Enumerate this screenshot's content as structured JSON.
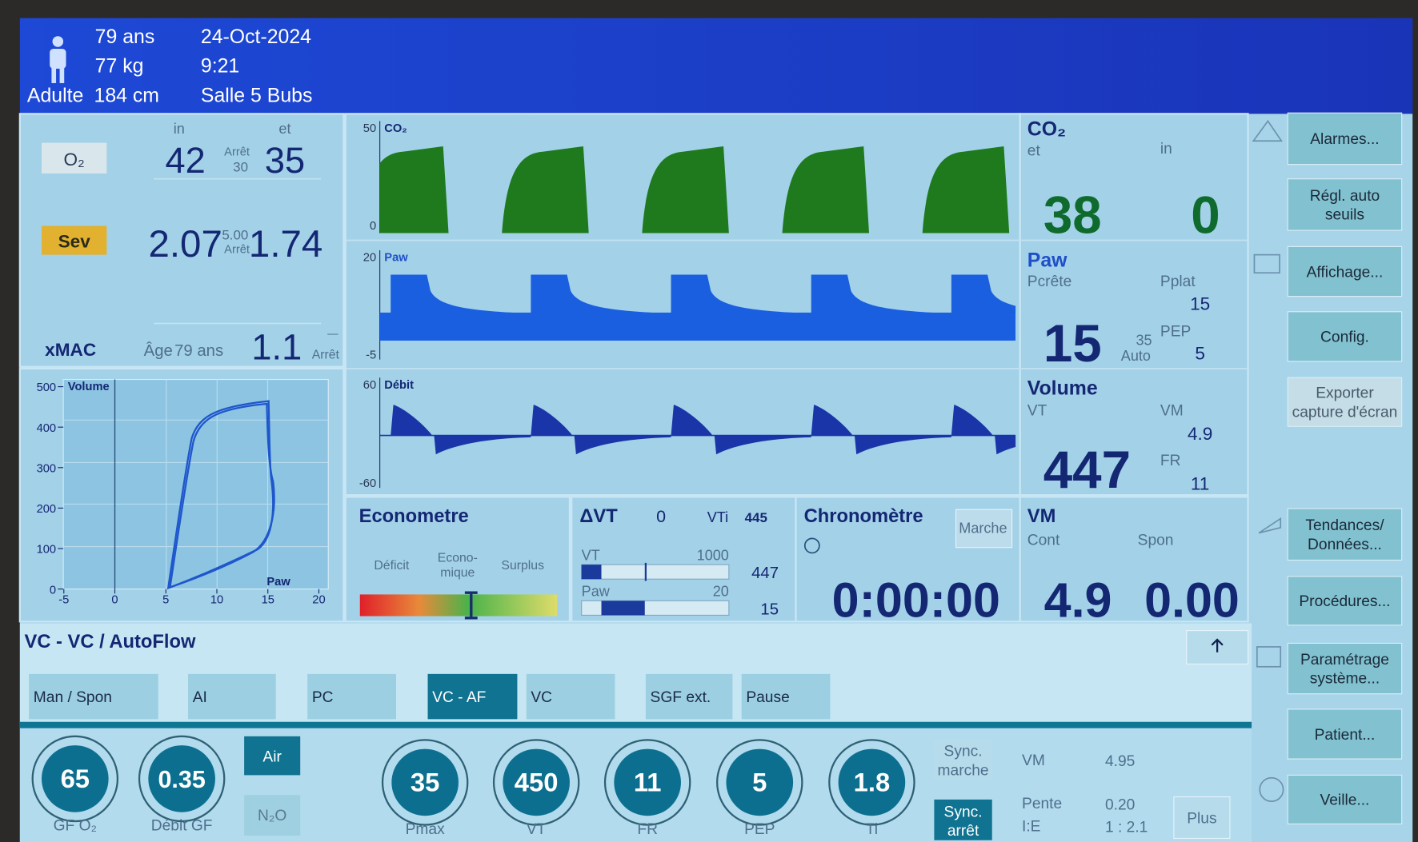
{
  "header": {
    "age": "79 ans",
    "weight": "77 kg",
    "patient_type": "Adulte",
    "height": "184 cm",
    "date": "24-Oct-2024",
    "time": "9:21",
    "room": "Salle 5 Bubs"
  },
  "gases": {
    "in_label": "in",
    "et_label": "et",
    "o2": {
      "label": "O₂",
      "in": "42",
      "alarm_label": "Arrêt",
      "alarm_value": "30",
      "et": "35"
    },
    "sev": {
      "label": "Sev",
      "in": "2.07",
      "alarm_value": "5.00",
      "alarm_label": "Arrêt",
      "et": "1.74"
    },
    "xmac": {
      "label": "xMAC",
      "age_label": "Âge",
      "age": "79 ans",
      "value": "1.1",
      "dash": "—",
      "alarm_label": "Arrêt"
    }
  },
  "loop": {
    "y_label": "Volume",
    "x_label": "Paw",
    "yticks": [
      500,
      400,
      300,
      200,
      100,
      0
    ],
    "xticks": [
      -5,
      0,
      5,
      10,
      15,
      20
    ]
  },
  "waveforms": [
    {
      "label": "CO₂",
      "top": "50",
      "bottom": "0"
    },
    {
      "label": "Paw",
      "top": "20",
      "bottom": "-5"
    },
    {
      "label": "Débit",
      "top": "60",
      "bottom": "-60"
    }
  ],
  "co2_panel": {
    "title": "CO₂",
    "et_label": "et",
    "in_label": "in",
    "et": "38",
    "in": "0"
  },
  "paw_panel": {
    "title": "Paw",
    "peak_label": "Pcrête",
    "plat_label": "Pplat",
    "plat": "15",
    "peak": "15",
    "limit": "35",
    "limit_label": "Auto",
    "pep_label": "PEP",
    "pep": "5"
  },
  "volume_panel": {
    "title": "Volume",
    "vt_label": "VT",
    "vm_label": "VM",
    "vm": "4.9",
    "fr_label": "FR",
    "fr": "11",
    "vt": "447"
  },
  "econometer": {
    "title": "Econometre",
    "deficit": "Déficit",
    "economic": [
      "Econo-",
      "mique"
    ],
    "surplus": "Surplus"
  },
  "dvt": {
    "title": "ΔVT",
    "value": "0",
    "vti_label": "VTi",
    "vti": "445",
    "bars": [
      {
        "label": "VT",
        "max": "1000",
        "value": "447"
      },
      {
        "label": "Paw",
        "max": "20",
        "value": "15"
      }
    ]
  },
  "chrono": {
    "title": "Chronomètre",
    "button": "Marche",
    "time": "0:00:00"
  },
  "vm_panel": {
    "title": "VM",
    "cont_label": "Cont",
    "spon_label": "Spon",
    "cont": "4.9",
    "spon": "0.00"
  },
  "mode": {
    "title": "VC - VC / AutoFlow",
    "tabs": [
      "Man / Spon",
      "AI",
      "PC",
      "VC - AF",
      "VC",
      "SGF ext.",
      "Pause"
    ],
    "active_tab": 3
  },
  "side_buttons": [
    [
      "Alarmes..."
    ],
    [
      "Régl. auto",
      "seuils"
    ],
    [
      "Affichage..."
    ],
    [
      "Config."
    ],
    [
      "Exporter",
      "capture d'écran"
    ],
    [
      "Tendances/",
      "Données..."
    ],
    [
      "Procédures..."
    ],
    [
      "Paramétrage",
      "système..."
    ],
    [
      "Patient..."
    ],
    [
      "Veille..."
    ]
  ],
  "knobs": [
    {
      "value": "65",
      "label": "GF O₂"
    },
    {
      "value": "0.35",
      "label": "Débit GF"
    },
    {
      "value": "35",
      "label": "Pmax"
    },
    {
      "value": "450",
      "label": "VT"
    },
    {
      "value": "11",
      "label": "FR"
    },
    {
      "value": "5",
      "label": "PEP"
    },
    {
      "value": "1.8",
      "label": "Ti"
    }
  ],
  "gas_buttons": [
    "Air",
    "N₂O"
  ],
  "sync_buttons": [
    [
      "Sync.",
      "marche"
    ],
    [
      "Sync.",
      "arrêt"
    ]
  ],
  "settings": {
    "vm_label": "VM",
    "vm": "4.95",
    "pente_label": "Pente",
    "pente": "0.20",
    "ie_label": "I:E",
    "ie": "1 : 2.1"
  },
  "plus": "Plus"
}
